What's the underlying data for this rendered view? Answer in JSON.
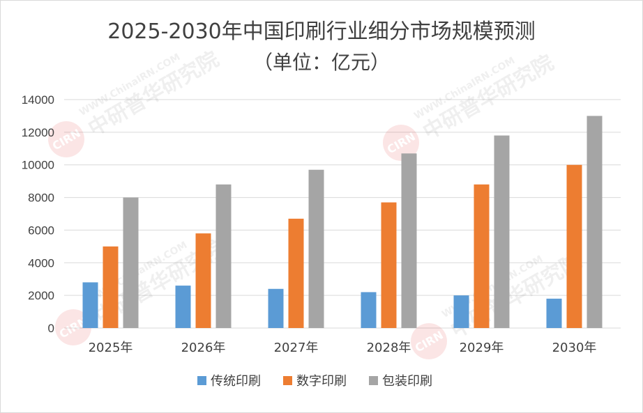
{
  "colors": {
    "series_1": "#5b9bd5",
    "series_2": "#ed7d31",
    "series_3": "#a5a5a5",
    "grid": "#d9d9d9",
    "watermark_red": "#e64040"
  },
  "watermark": {
    "line1": "WWW.ChinaIRN.COM",
    "line2": "中研普华研究院",
    "logo": "CIRN"
  },
  "chart_data": {
    "type": "bar",
    "title": "2025-2030年中国印刷行业细分市场规模预测",
    "subtitle": "（单位：亿元）",
    "xlabel": "",
    "ylabel": "",
    "categories": [
      "2025年",
      "2026年",
      "2027年",
      "2028年",
      "2029年",
      "2030年"
    ],
    "series": [
      {
        "name": "传统印刷",
        "color": "#5b9bd5",
        "values": [
          2800,
          2600,
          2400,
          2200,
          2000,
          1800
        ]
      },
      {
        "name": "数字印刷",
        "color": "#ed7d31",
        "values": [
          5000,
          5800,
          6700,
          7700,
          8800,
          10000
        ]
      },
      {
        "name": "包装印刷",
        "color": "#a5a5a5",
        "values": [
          8000,
          8800,
          9700,
          10700,
          11800,
          13000
        ]
      }
    ],
    "ylim": [
      0,
      14000
    ],
    "yticks": [
      0,
      2000,
      4000,
      6000,
      8000,
      10000,
      12000,
      14000
    ],
    "grid": true,
    "legend_position": "bottom"
  }
}
